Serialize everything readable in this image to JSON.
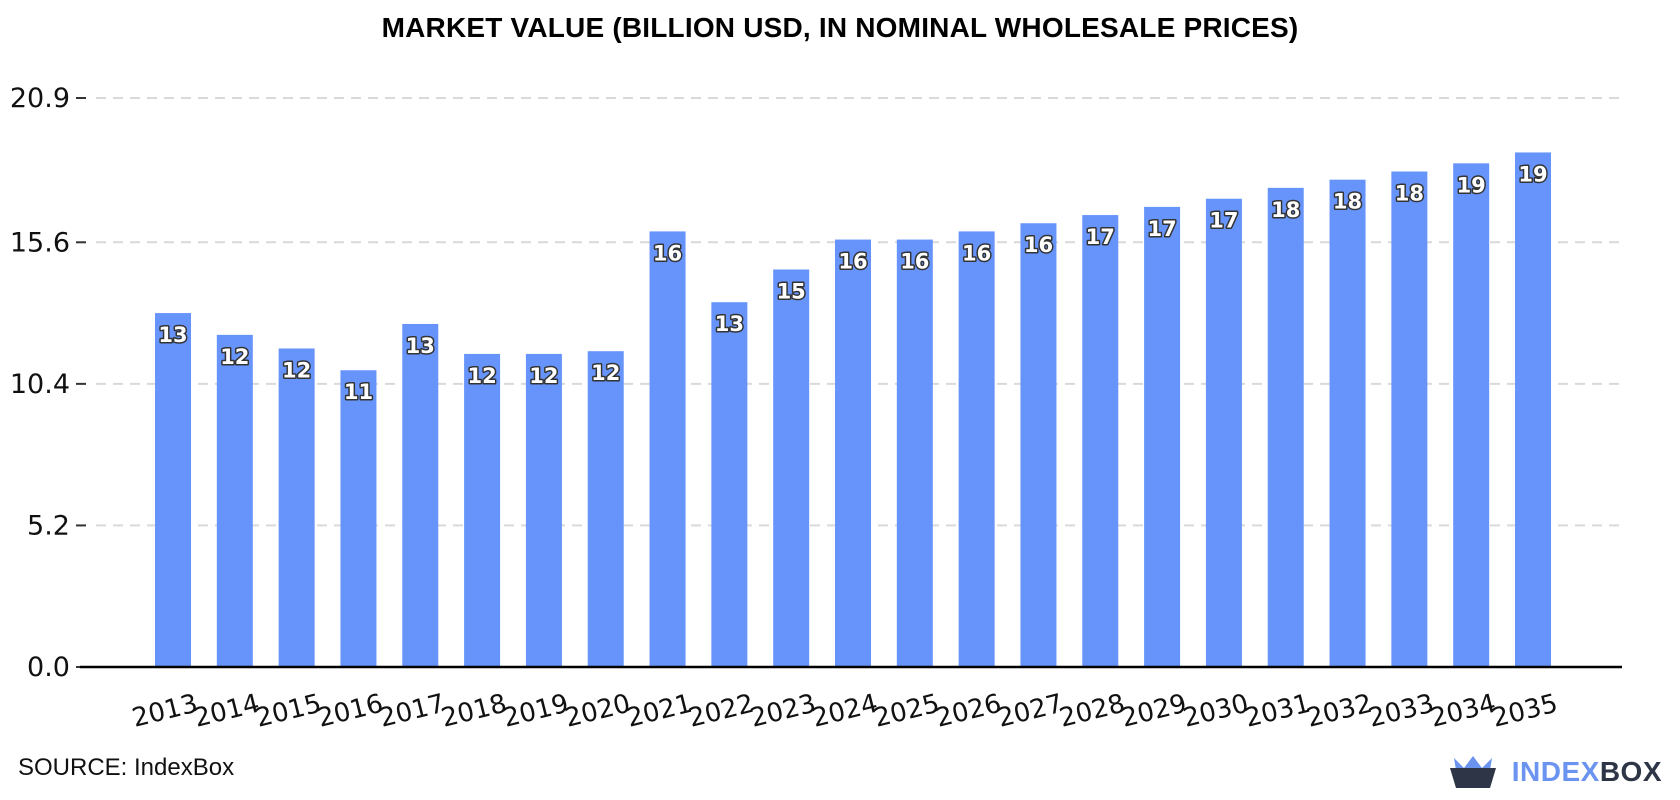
{
  "chart_data": {
    "type": "bar",
    "title": "MARKET VALUE (BILLION USD, IN NOMINAL WHOLESALE PRICES)",
    "xlabel": "",
    "ylabel": "",
    "categories": [
      "2013",
      "2014",
      "2015",
      "2016",
      "2017",
      "2018",
      "2019",
      "2020",
      "2021",
      "2022",
      "2023",
      "2024",
      "2025",
      "2026",
      "2027",
      "2028",
      "2029",
      "2030",
      "2031",
      "2032",
      "2033",
      "2034",
      "2035"
    ],
    "values": [
      13.0,
      12.2,
      11.7,
      10.9,
      12.6,
      11.5,
      11.5,
      11.6,
      16.0,
      13.4,
      14.6,
      15.7,
      15.7,
      16.0,
      16.3,
      16.6,
      16.9,
      17.2,
      17.6,
      17.9,
      18.2,
      18.5,
      18.9
    ],
    "data_labels": [
      "13",
      "12",
      "12",
      "11",
      "13",
      "12",
      "12",
      "12",
      "16",
      "13",
      "15",
      "16",
      "16",
      "16",
      "16",
      "17",
      "17",
      "17",
      "18",
      "18",
      "18",
      "19",
      "19"
    ],
    "ylim": [
      0,
      20.9
    ],
    "yticks": [
      0.0,
      5.2,
      10.4,
      15.6,
      20.9
    ],
    "ytick_labels": [
      "0.0",
      "5.2",
      "10.4",
      "15.6",
      "20.9"
    ],
    "grid": true,
    "bar_color": "#6694fb"
  },
  "footer": {
    "source": "SOURCE: IndexBox",
    "brand_part1": "INDEX",
    "brand_part2": "BOX",
    "logo_icon": "crown-basket-icon"
  }
}
